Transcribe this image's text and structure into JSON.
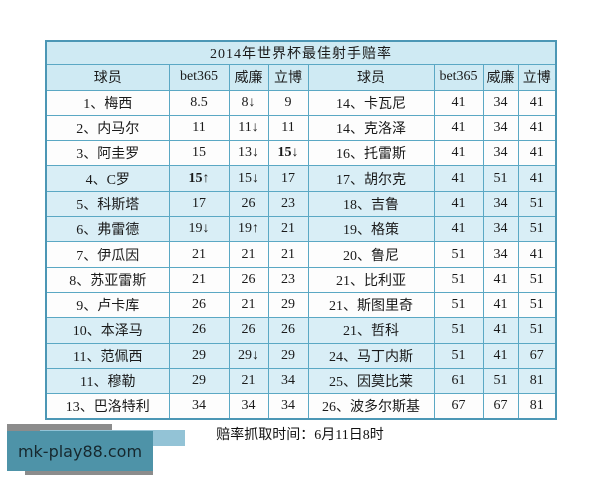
{
  "table": {
    "title": "2014年世界杯最佳射手赔率",
    "columns": [
      "球员",
      "bet365",
      "威廉",
      "立博",
      "球员",
      "bet365",
      "威廉",
      "立博"
    ],
    "striped_rows": [
      4,
      5,
      6,
      10,
      11,
      12
    ],
    "rows": [
      {
        "cells": [
          "1、梅西",
          "8.5",
          "8↓",
          "9",
          "14、卡瓦尼",
          "41",
          "34",
          "41"
        ],
        "bold": []
      },
      {
        "cells": [
          "2、内马尔",
          "11",
          "11↓",
          "11",
          "14、克洛泽",
          "41",
          "34",
          "41"
        ],
        "bold": []
      },
      {
        "cells": [
          "3、阿圭罗",
          "15",
          "13↓",
          "15↓",
          "16、托雷斯",
          "41",
          "34",
          "41"
        ],
        "bold": [
          3
        ]
      },
      {
        "cells": [
          "4、C罗",
          "15↑",
          "15↓",
          "17",
          "17、胡尔克",
          "41",
          "51",
          "41"
        ],
        "bold": [
          1
        ]
      },
      {
        "cells": [
          "5、科斯塔",
          "17",
          "26",
          "23",
          "18、吉鲁",
          "41",
          "34",
          "51"
        ],
        "bold": []
      },
      {
        "cells": [
          "6、弗雷德",
          "19↓",
          "19↑",
          "21",
          "19、格策",
          "41",
          "34",
          "51"
        ],
        "bold": []
      },
      {
        "cells": [
          "7、伊瓜因",
          "21",
          "21",
          "21",
          "20、鲁尼",
          "51",
          "34",
          "41"
        ],
        "bold": []
      },
      {
        "cells": [
          "8、苏亚雷斯",
          "21",
          "26",
          "23",
          "21、比利亚",
          "51",
          "41",
          "51"
        ],
        "bold": []
      },
      {
        "cells": [
          "9、卢卡库",
          "26",
          "21",
          "29",
          "21、斯图里奇",
          "51",
          "41",
          "51"
        ],
        "bold": []
      },
      {
        "cells": [
          "10、本泽马",
          "26",
          "26",
          "26",
          "21、哲科",
          "51",
          "41",
          "51"
        ],
        "bold": []
      },
      {
        "cells": [
          "11、范佩西",
          "29",
          "29↓",
          "29",
          "24、马丁内斯",
          "51",
          "41",
          "67"
        ],
        "bold": []
      },
      {
        "cells": [
          "11、穆勒",
          "29",
          "21",
          "34",
          "25、因莫比莱",
          "61",
          "51",
          "81"
        ],
        "bold": []
      },
      {
        "cells": [
          "13、巴洛特利",
          "34",
          "34",
          "34",
          "26、波多尔斯基",
          "67",
          "67",
          "81"
        ],
        "bold": []
      }
    ]
  },
  "footer": {
    "text": "赔率抓取时间：6月11日8时"
  },
  "watermark": {
    "text": "mk-play88.com"
  },
  "colors": {
    "table_border": "#4c97b5",
    "grid_line": "#5ba8c4",
    "header_bg": "#cfeaf3",
    "stripe_bg": "#d9eef6",
    "watermark_teal": "#4e93a8",
    "watermark_lightblue": "#93c3d6",
    "watermark_gray": "#8c8c8c"
  }
}
